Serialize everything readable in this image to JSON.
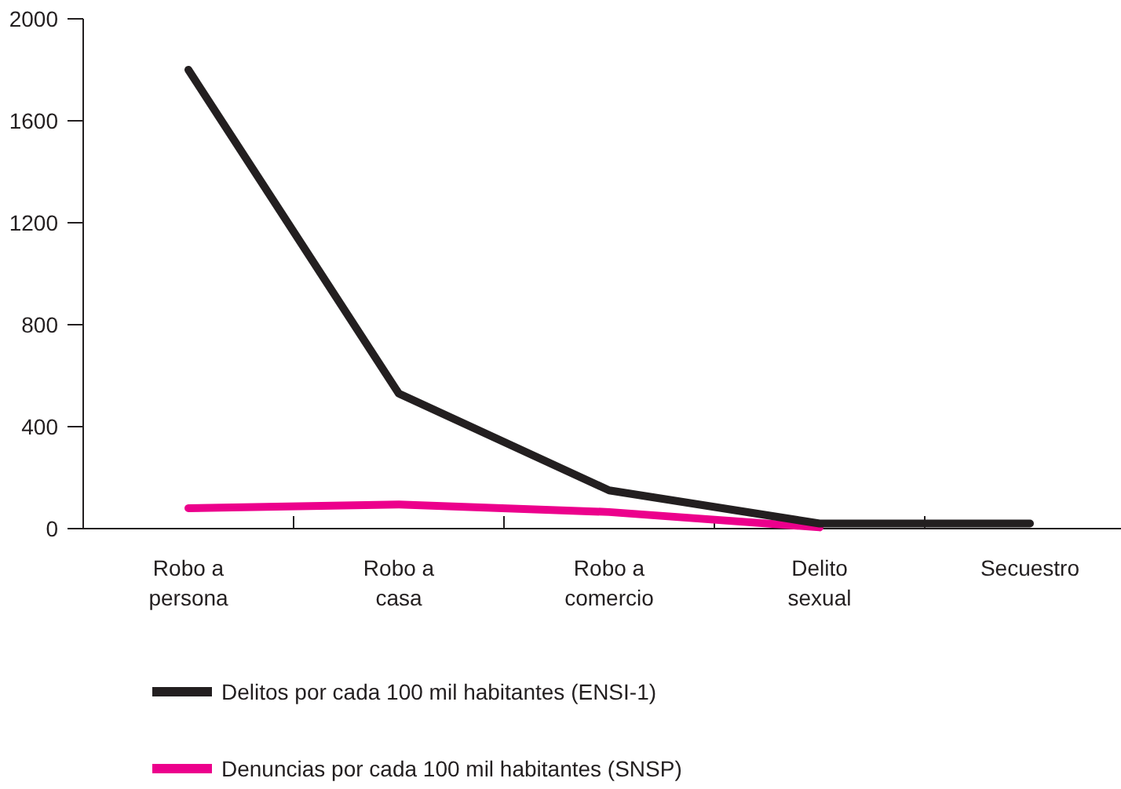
{
  "chart_data": {
    "type": "line",
    "categories": [
      "Robo a\npersona",
      "Robo a\ncasa",
      "Robo a\ncomercio",
      "Delito\nsexual",
      "Secuestro"
    ],
    "series": [
      {
        "name": "Delitos por cada 100 mil habitantes (ENSI-1)",
        "color": "#231f20",
        "values": [
          1800,
          530,
          150,
          20,
          20
        ]
      },
      {
        "name": "Denuncias por cada 100 mil habitantes (SNSP)",
        "color": "#ec008c",
        "values": [
          80,
          95,
          65,
          5,
          null
        ]
      }
    ],
    "ylim": [
      0,
      2000
    ],
    "yticks": [
      0,
      400,
      800,
      1200,
      1600,
      2000
    ],
    "grid": false,
    "legend": "bottom",
    "marker": "none",
    "line_style": "solid"
  }
}
